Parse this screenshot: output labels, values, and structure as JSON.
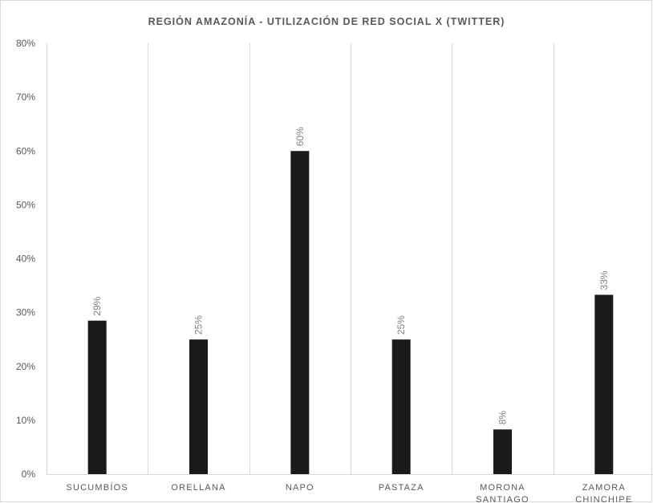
{
  "chart_data": {
    "type": "bar",
    "title": "REGIÓN AMAZONÍA - UTILIZACIÓN DE RED SOCIAL X (TWITTER)",
    "categories": [
      [
        "SUCUMBÍOS"
      ],
      [
        "ORELLANA"
      ],
      [
        "NAPO"
      ],
      [
        "PASTAZA"
      ],
      [
        "MORONA",
        "SANTIAGO"
      ],
      [
        "ZAMORA",
        "CHINCHIPE"
      ]
    ],
    "values": [
      0.285,
      0.25,
      0.6,
      0.25,
      0.083,
      0.333
    ],
    "data_labels": [
      "29%",
      "25%",
      "60%",
      "25%",
      "8%",
      "33%"
    ],
    "ylim": [
      0,
      0.8
    ],
    "yticks": [
      0,
      0.1,
      0.2,
      0.3,
      0.4,
      0.5,
      0.6,
      0.7,
      0.8
    ],
    "ytick_labels": [
      "0%",
      "10%",
      "20%",
      "30%",
      "40%",
      "50%",
      "60%",
      "70%",
      "80%"
    ],
    "xlabel": "",
    "ylabel": "",
    "grid": "vertical category separators",
    "legend": "none",
    "colors": {
      "bar": "#1a1a1a",
      "grid": "#d9d9d9",
      "text": "#595959",
      "data_label": "#7f7f7f"
    }
  }
}
